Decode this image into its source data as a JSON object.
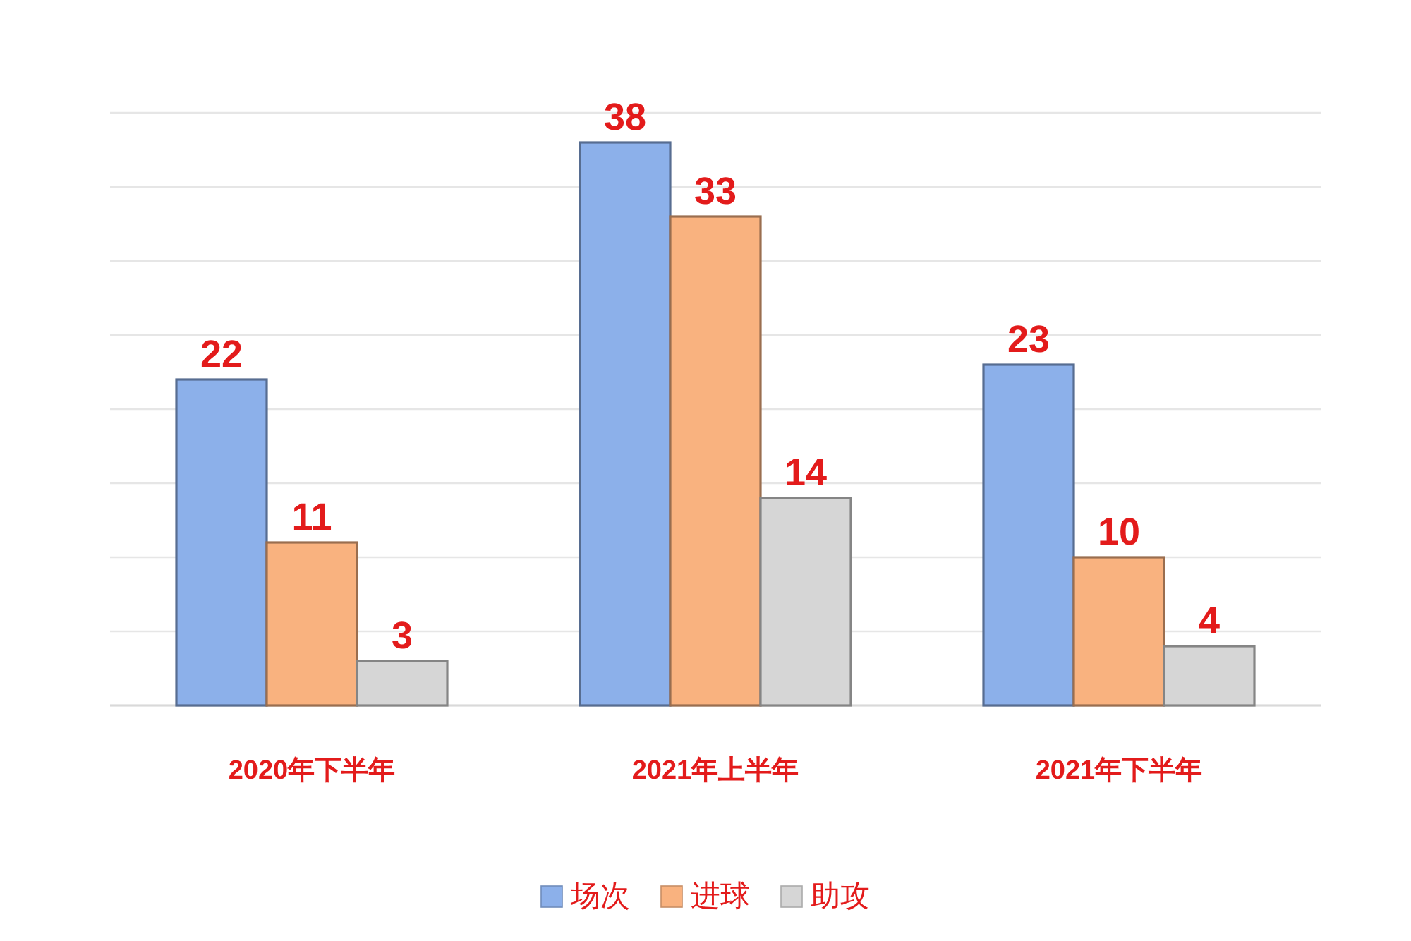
{
  "chart_data": {
    "type": "bar",
    "categories": [
      "2020年下半年",
      "2021年上半年",
      "2021年下半年"
    ],
    "series": [
      {
        "name": "场次",
        "color": "#8cb0ea",
        "values": [
          22,
          38,
          23
        ]
      },
      {
        "name": "进球",
        "color": "#f9b27f",
        "values": [
          11,
          33,
          10
        ]
      },
      {
        "name": "助攻",
        "color": "#d6d6d6",
        "values": [
          3,
          14,
          4
        ]
      }
    ],
    "ylim": [
      0,
      40
    ],
    "yticks": [
      {
        "value": 0,
        "label": null
      },
      {
        "value": 5,
        "label": null
      },
      {
        "value": 10,
        "label": null
      },
      {
        "value": 15,
        "label": null
      },
      {
        "value": 20,
        "label": null
      },
      {
        "value": 25,
        "label": null
      },
      {
        "value": 30,
        "label": null
      },
      {
        "value": 35,
        "label": null
      },
      {
        "value": 40,
        "label": null
      }
    ],
    "grid": "y",
    "legend": "bottom",
    "data_labels": true
  }
}
